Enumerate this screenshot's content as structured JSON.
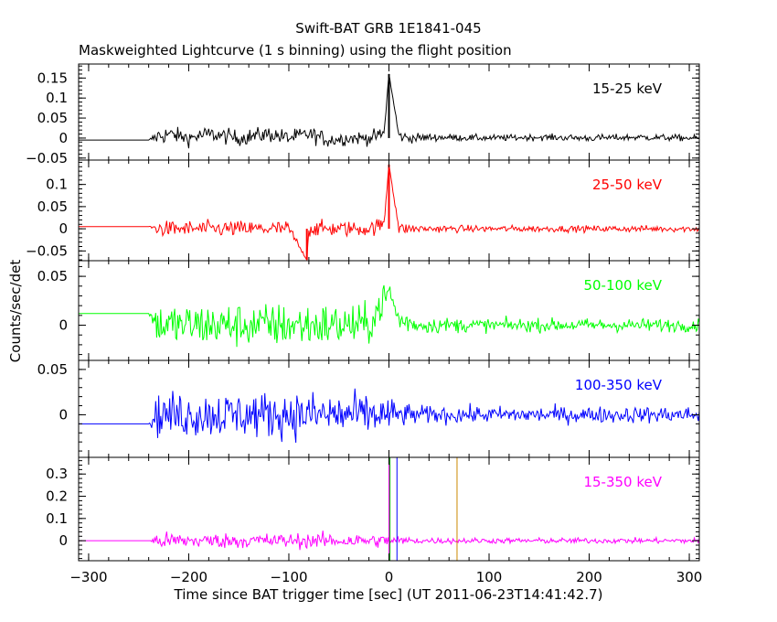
{
  "title": "Swift-BAT GRB 1E1841-045",
  "subtitle": "Maskweighted Lightcurve (1 s binning) using the flight position",
  "xlabel": "Time since BAT trigger time [sec] (UT 2011-06-23T14:41:42.7)",
  "ylabel": "Counts/sec/det",
  "chart_data": [
    {
      "type": "line",
      "band": "15-25 keV",
      "color": "#000000",
      "xlim": [
        -310,
        310
      ],
      "ylim": [
        -0.055,
        0.185
      ],
      "yticks": [
        -0.05,
        0,
        0.05,
        0.1,
        0.15
      ],
      "ytick_labels": [
        "−0.05",
        "0",
        "0.05",
        "0.1",
        "0.15"
      ],
      "x": [
        -310,
        -240,
        -230,
        -220,
        -200,
        -180,
        -150,
        -120,
        -100,
        -80,
        -60,
        -40,
        -20,
        -5,
        0,
        10,
        20,
        50,
        100,
        150,
        200,
        250,
        300,
        310
      ],
      "values": [
        -0.005,
        -0.005,
        0.005,
        0.01,
        0.0,
        0.01,
        0.0,
        0.01,
        0.0,
        0.01,
        -0.005,
        0.0,
        0.0,
        0.01,
        0.16,
        0.005,
        0.0,
        0.002,
        0.0,
        0.002,
        0.0,
        0.002,
        0.0,
        0.0
      ],
      "noise": [
        0,
        0,
        0.045,
        0.035,
        0.035,
        0.035,
        0.035,
        0.035,
        0.035,
        0.035,
        0.035,
        0.03,
        0.03,
        0.03,
        0,
        0.025,
        0.022,
        0.016,
        0.014,
        0.014,
        0.015,
        0.015,
        0.014,
        0.014
      ]
    },
    {
      "type": "line",
      "band": "25-50 keV",
      "color": "#ff0000",
      "xlim": [
        -310,
        310
      ],
      "ylim": [
        -0.072,
        0.155
      ],
      "yticks": [
        -0.05,
        0,
        0.05,
        0.1
      ],
      "ytick_labels": [
        "−0.05",
        "0",
        "0.05",
        "0.1"
      ],
      "x": [
        -310,
        -240,
        -230,
        -200,
        -150,
        -100,
        -82,
        -80,
        -60,
        -20,
        -5,
        0,
        10,
        30,
        100,
        200,
        300,
        310
      ],
      "values": [
        0.005,
        0.005,
        0.0,
        0.0,
        0.0,
        0.0,
        -0.07,
        0.0,
        0.0,
        0.0,
        0.01,
        0.145,
        0.0,
        0.0,
        0.0,
        0.0,
        0.0,
        0.0
      ],
      "noise": [
        0,
        0,
        0.03,
        0.032,
        0.032,
        0.032,
        0,
        0.032,
        0.032,
        0.03,
        0.03,
        0,
        0.025,
        0.016,
        0.013,
        0.013,
        0.013,
        0.013
      ]
    },
    {
      "type": "line",
      "band": "50-100 keV",
      "color": "#00ff00",
      "xlim": [
        -310,
        310
      ],
      "ylim": [
        -0.036,
        0.066
      ],
      "yticks": [
        0,
        0.05
      ],
      "ytick_labels": [
        "0",
        "0.05"
      ],
      "x": [
        -310,
        -240,
        -230,
        -200,
        -150,
        -100,
        -50,
        -20,
        0,
        10,
        30,
        100,
        200,
        300,
        310
      ],
      "values": [
        0.012,
        0.012,
        0.0,
        0.0,
        0.0,
        0.0,
        0.0,
        0.0,
        0.035,
        0.005,
        0.0,
        0.0,
        0.0,
        0.0,
        0.0
      ],
      "noise": [
        0,
        0,
        0.04,
        0.04,
        0.04,
        0.04,
        0.04,
        0.035,
        0.03,
        0.022,
        0.015,
        0.012,
        0.012,
        0.012,
        0.012
      ]
    },
    {
      "type": "line",
      "band": "100-350 keV",
      "color": "#0000ff",
      "xlim": [
        -310,
        310
      ],
      "ylim": [
        -0.047,
        0.06
      ],
      "yticks": [
        0,
        0.05
      ],
      "ytick_labels": [
        "0",
        "0.05"
      ],
      "x": [
        -310,
        -240,
        -230,
        -200,
        -150,
        -100,
        -50,
        -20,
        0,
        10,
        30,
        100,
        200,
        300,
        310
      ],
      "values": [
        -0.01,
        -0.01,
        0.0,
        0.0,
        0.0,
        0.0,
        0.0,
        0.0,
        0.0,
        0.0,
        0.0,
        0.0,
        0.0,
        0.0,
        0.0
      ],
      "noise": [
        0,
        0,
        0.045,
        0.045,
        0.045,
        0.045,
        0.045,
        0.04,
        0.035,
        0.025,
        0.018,
        0.016,
        0.016,
        0.016,
        0.016
      ]
    },
    {
      "type": "line",
      "band": "15-350 keV",
      "color": "#ff00ff",
      "xlim": [
        -310,
        310
      ],
      "ylim": [
        -0.09,
        0.375
      ],
      "yticks": [
        0,
        0.1,
        0.2,
        0.3
      ],
      "ytick_labels": [
        "0",
        "0.1",
        "0.2",
        "0.3"
      ],
      "x": [
        -310,
        -240,
        -230,
        -200,
        -150,
        -100,
        -50,
        -20,
        0,
        10,
        30,
        100,
        200,
        300,
        310
      ],
      "values": [
        0.0,
        0.0,
        0.0,
        0.0,
        0.0,
        0.0,
        0.0,
        0.0,
        0.0,
        0.0,
        0.0,
        0.0,
        0.0,
        0.0,
        0.0
      ],
      "noise": [
        0,
        0,
        0.07,
        0.06,
        0.06,
        0.06,
        0.06,
        0.055,
        0.05,
        0.035,
        0.025,
        0.022,
        0.022,
        0.022,
        0.022
      ],
      "markers": [
        {
          "x": 0,
          "color": "#ff00ff"
        },
        {
          "x": 1,
          "color": "#00aa00"
        },
        {
          "x": 8,
          "color": "#0000ff"
        },
        {
          "x": 68,
          "color": "#cc8800"
        }
      ]
    }
  ],
  "xticks": [
    -300,
    -200,
    -100,
    0,
    100,
    200,
    300
  ],
  "xtick_labels": [
    "−300",
    "−200",
    "−100",
    "0",
    "100",
    "200",
    "300"
  ]
}
